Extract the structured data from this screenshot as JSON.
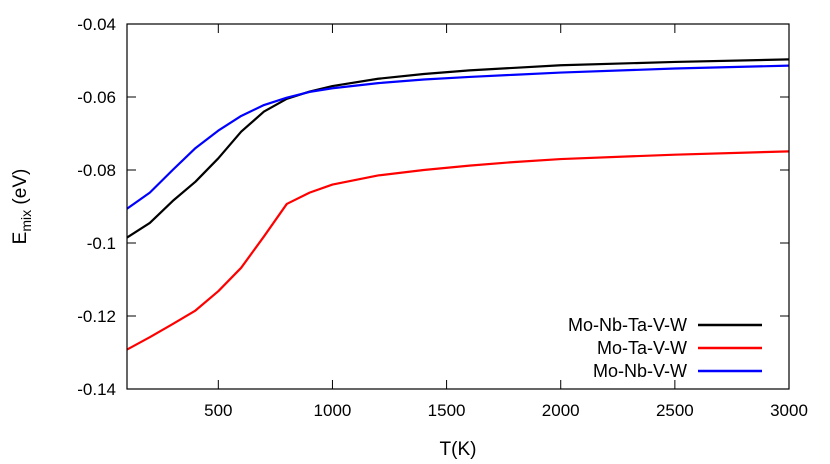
{
  "chart_data": {
    "type": "line",
    "xlabel": "T(K)",
    "ylabel_main": "E",
    "ylabel_sub": "mix",
    "ylabel_unit": " (eV)",
    "xlim": [
      100,
      3000
    ],
    "ylim": [
      -0.14,
      -0.04
    ],
    "xticks": [
      500,
      1000,
      1500,
      2000,
      2500,
      3000
    ],
    "xtick_labels": [
      "500",
      "1000",
      "1500",
      "2000",
      "2500",
      "3000"
    ],
    "yticks": [
      -0.14,
      -0.12,
      -0.1,
      -0.08,
      -0.06,
      -0.04
    ],
    "ytick_labels": [
      "-0.14",
      "-0.12",
      "-0.1",
      "-0.08",
      "-0.06",
      "-0.04"
    ],
    "legend_position": "bottom-right",
    "series": [
      {
        "name": "Mo-Nb-Ta-V-W",
        "color": "#000000",
        "x": [
          100,
          200,
          300,
          400,
          500,
          600,
          700,
          800,
          900,
          1000,
          1200,
          1400,
          1600,
          1800,
          2000,
          2500,
          3000
        ],
        "y": [
          -0.0985,
          -0.0945,
          -0.0885,
          -0.0832,
          -0.0768,
          -0.0695,
          -0.064,
          -0.0605,
          -0.0585,
          -0.057,
          -0.055,
          -0.0537,
          -0.0527,
          -0.052,
          -0.0513,
          -0.0504,
          -0.0497
        ]
      },
      {
        "name": "Mo-Ta-V-W",
        "color": "#ff0000",
        "x": [
          100,
          200,
          300,
          400,
          500,
          600,
          700,
          800,
          900,
          1000,
          1200,
          1400,
          1600,
          1800,
          2000,
          2500,
          3000
        ],
        "y": [
          -0.1292,
          -0.1258,
          -0.1222,
          -0.1185,
          -0.1132,
          -0.1068,
          -0.0982,
          -0.0893,
          -0.0862,
          -0.084,
          -0.0815,
          -0.08,
          -0.0788,
          -0.0778,
          -0.077,
          -0.0758,
          -0.0749
        ]
      },
      {
        "name": "Mo-Nb-V-W",
        "color": "#0000ff",
        "x": [
          100,
          200,
          300,
          400,
          500,
          600,
          700,
          800,
          900,
          1000,
          1200,
          1400,
          1600,
          1800,
          2000,
          2500,
          3000
        ],
        "y": [
          -0.0906,
          -0.0862,
          -0.08,
          -0.074,
          -0.0692,
          -0.0652,
          -0.0622,
          -0.0602,
          -0.0586,
          -0.0576,
          -0.0562,
          -0.0552,
          -0.0545,
          -0.0539,
          -0.0533,
          -0.0522,
          -0.0514
        ]
      }
    ]
  }
}
